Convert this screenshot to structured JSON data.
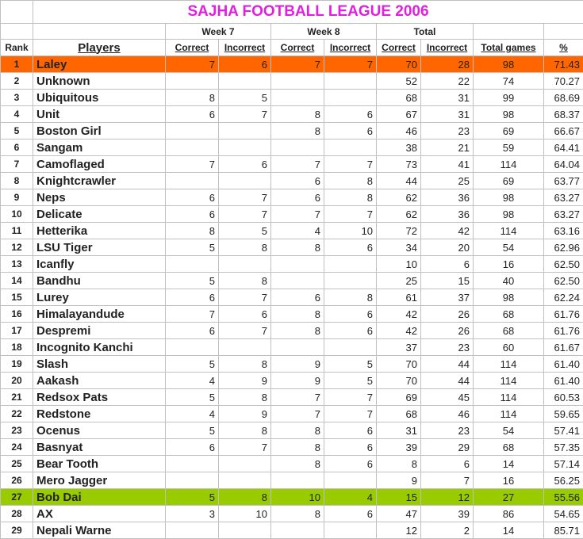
{
  "title": "SAJHA FOOTBALL LEAGUE 2006",
  "groups": {
    "week7": "Week 7",
    "week8": "Week 8",
    "total": "Total"
  },
  "headers": {
    "rank": "Rank",
    "players": "Players",
    "w7_correct": "Correct",
    "w7_incorrect": "Incorrect",
    "w8_correct": "Correct",
    "w8_incorrect": "Incorrect",
    "t_correct": "Correct",
    "t_incorrect": "Incorrect",
    "total_games": "Total games",
    "pct": "%"
  },
  "highlight_colors": {
    "1": "#ff6600",
    "27": "#99cc00"
  },
  "rows": [
    {
      "rank": "1",
      "name": "Laley",
      "w7c": "7",
      "w7i": "6",
      "w8c": "7",
      "w8i": "7",
      "tc": "70",
      "ti": "28",
      "tg": "98",
      "pct": "71.43"
    },
    {
      "rank": "2",
      "name": "Unknown",
      "w7c": "",
      "w7i": "",
      "w8c": "",
      "w8i": "",
      "tc": "52",
      "ti": "22",
      "tg": "74",
      "pct": "70.27"
    },
    {
      "rank": "3",
      "name": "Ubiquitous",
      "w7c": "8",
      "w7i": "5",
      "w8c": "",
      "w8i": "",
      "tc": "68",
      "ti": "31",
      "tg": "99",
      "pct": "68.69"
    },
    {
      "rank": "4",
      "name": "Unit",
      "w7c": "6",
      "w7i": "7",
      "w8c": "8",
      "w8i": "6",
      "tc": "67",
      "ti": "31",
      "tg": "98",
      "pct": "68.37"
    },
    {
      "rank": "5",
      "name": "Boston Girl",
      "w7c": "",
      "w7i": "",
      "w8c": "8",
      "w8i": "6",
      "tc": "46",
      "ti": "23",
      "tg": "69",
      "pct": "66.67"
    },
    {
      "rank": "6",
      "name": "Sangam",
      "w7c": "",
      "w7i": "",
      "w8c": "",
      "w8i": "",
      "tc": "38",
      "ti": "21",
      "tg": "59",
      "pct": "64.41"
    },
    {
      "rank": "7",
      "name": "Camoflaged",
      "w7c": "7",
      "w7i": "6",
      "w8c": "7",
      "w8i": "7",
      "tc": "73",
      "ti": "41",
      "tg": "114",
      "pct": "64.04"
    },
    {
      "rank": "8",
      "name": "Knightcrawler",
      "w7c": "",
      "w7i": "",
      "w8c": "6",
      "w8i": "8",
      "tc": "44",
      "ti": "25",
      "tg": "69",
      "pct": "63.77"
    },
    {
      "rank": "9",
      "name": "Neps",
      "w7c": "6",
      "w7i": "7",
      "w8c": "6",
      "w8i": "8",
      "tc": "62",
      "ti": "36",
      "tg": "98",
      "pct": "63.27"
    },
    {
      "rank": "10",
      "name": "Delicate",
      "w7c": "6",
      "w7i": "7",
      "w8c": "7",
      "w8i": "7",
      "tc": "62",
      "ti": "36",
      "tg": "98",
      "pct": "63.27"
    },
    {
      "rank": "11",
      "name": "Hetterika",
      "w7c": "8",
      "w7i": "5",
      "w8c": "4",
      "w8i": "10",
      "tc": "72",
      "ti": "42",
      "tg": "114",
      "pct": "63.16"
    },
    {
      "rank": "12",
      "name": "LSU Tiger",
      "w7c": "5",
      "w7i": "8",
      "w8c": "8",
      "w8i": "6",
      "tc": "34",
      "ti": "20",
      "tg": "54",
      "pct": "62.96"
    },
    {
      "rank": "13",
      "name": "Icanfly",
      "w7c": "",
      "w7i": "",
      "w8c": "",
      "w8i": "",
      "tc": "10",
      "ti": "6",
      "tg": "16",
      "pct": "62.50"
    },
    {
      "rank": "14",
      "name": "Bandhu",
      "w7c": "5",
      "w7i": "8",
      "w8c": "",
      "w8i": "",
      "tc": "25",
      "ti": "15",
      "tg": "40",
      "pct": "62.50"
    },
    {
      "rank": "15",
      "name": "Lurey",
      "w7c": "6",
      "w7i": "7",
      "w8c": "6",
      "w8i": "8",
      "tc": "61",
      "ti": "37",
      "tg": "98",
      "pct": "62.24"
    },
    {
      "rank": "16",
      "name": "Himalayandude",
      "w7c": "7",
      "w7i": "6",
      "w8c": "8",
      "w8i": "6",
      "tc": "42",
      "ti": "26",
      "tg": "68",
      "pct": "61.76"
    },
    {
      "rank": "17",
      "name": "Despremi",
      "w7c": "6",
      "w7i": "7",
      "w8c": "8",
      "w8i": "6",
      "tc": "42",
      "ti": "26",
      "tg": "68",
      "pct": "61.76"
    },
    {
      "rank": "18",
      "name": "Incognito Kanchi",
      "w7c": "",
      "w7i": "",
      "w8c": "",
      "w8i": "",
      "tc": "37",
      "ti": "23",
      "tg": "60",
      "pct": "61.67"
    },
    {
      "rank": "19",
      "name": "Slash",
      "w7c": "5",
      "w7i": "8",
      "w8c": "9",
      "w8i": "5",
      "tc": "70",
      "ti": "44",
      "tg": "114",
      "pct": "61.40"
    },
    {
      "rank": "20",
      "name": "Aakash",
      "w7c": "4",
      "w7i": "9",
      "w8c": "9",
      "w8i": "5",
      "tc": "70",
      "ti": "44",
      "tg": "114",
      "pct": "61.40"
    },
    {
      "rank": "21",
      "name": "Redsox Pats",
      "w7c": "5",
      "w7i": "8",
      "w8c": "7",
      "w8i": "7",
      "tc": "69",
      "ti": "45",
      "tg": "114",
      "pct": "60.53"
    },
    {
      "rank": "22",
      "name": "Redstone",
      "w7c": "4",
      "w7i": "9",
      "w8c": "7",
      "w8i": "7",
      "tc": "68",
      "ti": "46",
      "tg": "114",
      "pct": "59.65"
    },
    {
      "rank": "23",
      "name": "Ocenus",
      "w7c": "5",
      "w7i": "8",
      "w8c": "8",
      "w8i": "6",
      "tc": "31",
      "ti": "23",
      "tg": "54",
      "pct": "57.41"
    },
    {
      "rank": "24",
      "name": "Basnyat",
      "w7c": "6",
      "w7i": "7",
      "w8c": "8",
      "w8i": "6",
      "tc": "39",
      "ti": "29",
      "tg": "68",
      "pct": "57.35"
    },
    {
      "rank": "25",
      "name": "Bear Tooth",
      "w7c": "",
      "w7i": "",
      "w8c": "8",
      "w8i": "6",
      "tc": "8",
      "ti": "6",
      "tg": "14",
      "pct": "57.14"
    },
    {
      "rank": "26",
      "name": "Mero Jagger",
      "w7c": "",
      "w7i": "",
      "w8c": "",
      "w8i": "",
      "tc": "9",
      "ti": "7",
      "tg": "16",
      "pct": "56.25"
    },
    {
      "rank": "27",
      "name": "Bob Dai",
      "w7c": "5",
      "w7i": "8",
      "w8c": "10",
      "w8i": "4",
      "tc": "15",
      "ti": "12",
      "tg": "27",
      "pct": "55.56"
    },
    {
      "rank": "28",
      "name": "AX",
      "w7c": "3",
      "w7i": "10",
      "w8c": "8",
      "w8i": "6",
      "tc": "47",
      "ti": "39",
      "tg": "86",
      "pct": "54.65"
    },
    {
      "rank": "29",
      "name": "Nepali Warne",
      "w7c": "",
      "w7i": "",
      "w8c": "",
      "w8i": "",
      "tc": "12",
      "ti": "2",
      "tg": "14",
      "pct": "85.71"
    }
  ]
}
